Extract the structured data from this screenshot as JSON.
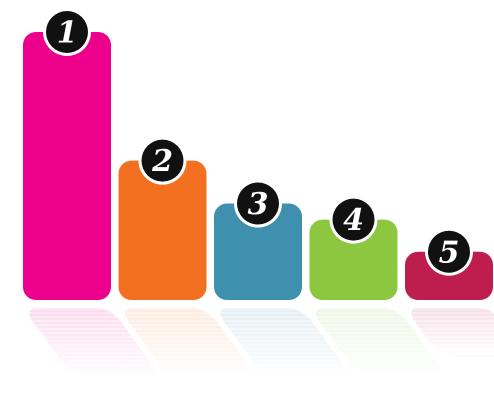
{
  "chart_data": {
    "type": "bar",
    "categories": [
      "1",
      "2",
      "3",
      "4",
      "5"
    ],
    "values": [
      100,
      52,
      36,
      30,
      18
    ],
    "colors": [
      "#EC008C",
      "#F37021",
      "#3F8FAE",
      "#8DC63F",
      "#BE1E4E"
    ],
    "ylim": [
      0,
      100
    ],
    "grid": false,
    "legend": "none",
    "badge_style": "black circle with white outline, white italic numeral",
    "reflection": true
  }
}
